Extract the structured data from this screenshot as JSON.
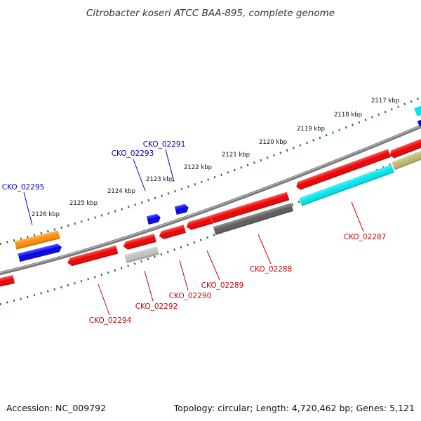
{
  "title": "Citrobacter koseri ATCC BAA-895, complete genome",
  "footer": {
    "accession": "Accession: NC_009792",
    "stats": "Topology: circular; Length: 4,720,462 bp; Genes: 5,121"
  },
  "colors": {
    "background": "#ffffff",
    "backbone": "#7a7a7a",
    "tick": "#1f7a1f",
    "forward_label": "#0000cc",
    "reverse_label": "#cc0000",
    "orange": "#ff8c00",
    "blue": "#0000ee",
    "red": "#ee0000",
    "dark_gray": "#5c5c5c",
    "light_gray": "#c0c0c0",
    "cyan": "#00e5ee",
    "khaki": "#bdb76b"
  },
  "scale": {
    "unit": "kbp",
    "ticks": [
      "2117 kbp",
      "2118 kbp",
      "2119 kbp",
      "2120 kbp",
      "2121 kbp",
      "2122 kbp",
      "2123 kbp",
      "2124 kbp",
      "2125 kbp",
      "2126 kbp"
    ]
  },
  "gene_labels": {
    "forward": [
      "CKO_02295",
      "CKO_02293",
      "CKO_02291"
    ],
    "reverse": [
      "CKO_02294",
      "CKO_02292",
      "CKO_02290",
      "CKO_02289",
      "CKO_02288",
      "CKO_02287"
    ]
  }
}
